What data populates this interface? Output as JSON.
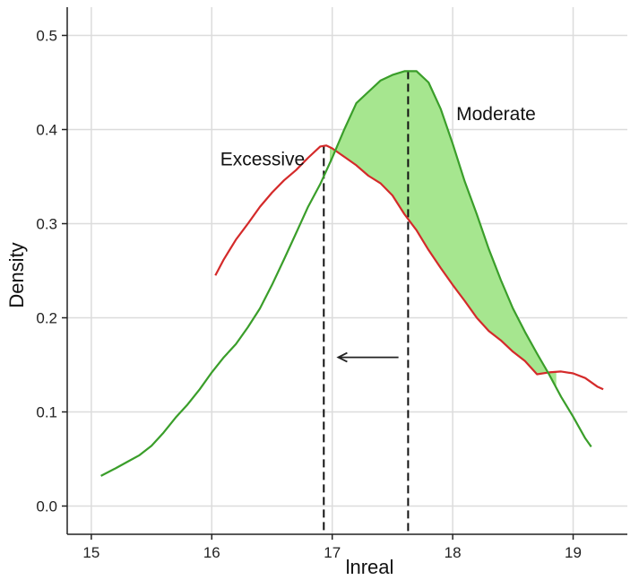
{
  "chart_data": {
    "type": "line",
    "title": "",
    "xlabel": "lnreal",
    "ylabel": "Density",
    "xlim": [
      14.8,
      19.45
    ],
    "ylim": [
      -0.03,
      0.53
    ],
    "x_ticks": [
      15,
      16,
      17,
      18,
      19
    ],
    "y_ticks": [
      0.0,
      0.1,
      0.2,
      0.3,
      0.4,
      0.5
    ],
    "x_tick_labels": [
      "15",
      "16",
      "17",
      "18",
      "19"
    ],
    "y_tick_labels": [
      "0.0",
      "0.1",
      "0.2",
      "0.3",
      "0.4",
      "0.5"
    ],
    "grid": true,
    "series": [
      {
        "name": "Excessive",
        "color": "#d42a2a",
        "x": [
          16.03,
          16.1,
          16.2,
          16.3,
          16.4,
          16.5,
          16.6,
          16.7,
          16.8,
          16.9,
          16.95,
          17.0,
          17.1,
          17.2,
          17.3,
          17.4,
          17.5,
          17.6,
          17.7,
          17.8,
          17.9,
          18.0,
          18.1,
          18.2,
          18.3,
          18.4,
          18.5,
          18.6,
          18.7,
          18.8,
          18.9,
          19.0,
          19.1,
          19.2,
          19.25
        ],
        "y": [
          0.245,
          0.262,
          0.283,
          0.3,
          0.318,
          0.333,
          0.346,
          0.357,
          0.37,
          0.382,
          0.383,
          0.38,
          0.371,
          0.362,
          0.351,
          0.343,
          0.33,
          0.31,
          0.293,
          0.272,
          0.253,
          0.235,
          0.218,
          0.2,
          0.186,
          0.176,
          0.164,
          0.154,
          0.14,
          0.142,
          0.143,
          0.141,
          0.136,
          0.127,
          0.124
        ]
      },
      {
        "name": "Moderate",
        "color": "#3a9e2a",
        "x": [
          15.08,
          15.2,
          15.3,
          15.4,
          15.5,
          15.6,
          15.7,
          15.8,
          15.9,
          16.0,
          16.1,
          16.2,
          16.3,
          16.4,
          16.5,
          16.6,
          16.7,
          16.8,
          16.9,
          17.0,
          17.1,
          17.2,
          17.3,
          17.4,
          17.5,
          17.6,
          17.7,
          17.8,
          17.9,
          18.0,
          18.1,
          18.2,
          18.3,
          18.4,
          18.5,
          18.6,
          18.7,
          18.8,
          18.9,
          19.0,
          19.1,
          19.15
        ],
        "y": [
          0.032,
          0.04,
          0.047,
          0.054,
          0.064,
          0.078,
          0.094,
          0.108,
          0.124,
          0.142,
          0.158,
          0.172,
          0.19,
          0.21,
          0.235,
          0.262,
          0.29,
          0.318,
          0.342,
          0.37,
          0.4,
          0.428,
          0.44,
          0.452,
          0.458,
          0.462,
          0.462,
          0.45,
          0.422,
          0.385,
          0.345,
          0.31,
          0.273,
          0.24,
          0.21,
          0.185,
          0.162,
          0.14,
          0.116,
          0.095,
          0.072,
          0.063
        ]
      }
    ],
    "shaded_region": {
      "between": [
        "Moderate",
        "Excessive"
      ],
      "x_range": [
        16.98,
        18.86
      ],
      "color": "#a6e68f"
    },
    "vertical_lines": [
      {
        "x": 16.93,
        "y_top": 0.383,
        "style": "dashed"
      },
      {
        "x": 17.63,
        "y_top": 0.462,
        "style": "dashed"
      }
    ],
    "arrow": {
      "from_x": 17.55,
      "to_x": 17.05,
      "y": 0.158
    },
    "annotations": [
      {
        "text": "Excessive",
        "x": 16.07,
        "y": 0.362
      },
      {
        "text": "Moderate",
        "x": 18.03,
        "y": 0.41
      }
    ]
  }
}
